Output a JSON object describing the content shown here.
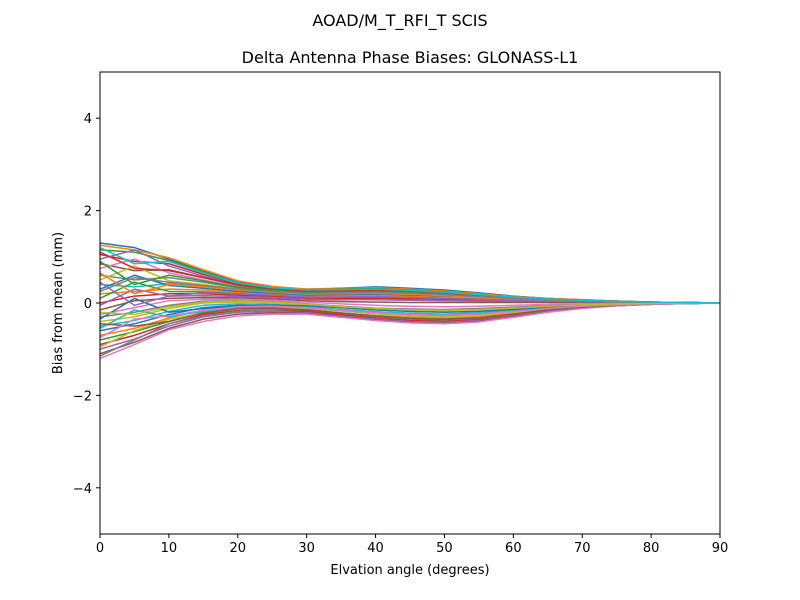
{
  "chart_data": {
    "type": "line",
    "suptitle": "AOAD/M_T_RFI_T  SCIS",
    "title": "Delta Antenna Phase Biases: GLONASS-L1",
    "xlabel": "Elvation angle (degrees)",
    "ylabel": "Bias from mean (mm)",
    "xlim": [
      0,
      90
    ],
    "ylim": [
      -5,
      5
    ],
    "xticks": [
      0,
      10,
      20,
      30,
      40,
      50,
      60,
      70,
      80,
      90
    ],
    "yticks": [
      -4,
      -2,
      0,
      2,
      4
    ],
    "ytick_labels": [
      "−4",
      "−2",
      "0",
      "2",
      "4"
    ],
    "grid": false,
    "legend": "none",
    "x": [
      0,
      5,
      10,
      15,
      20,
      25,
      30,
      35,
      40,
      45,
      50,
      55,
      60,
      65,
      70,
      75,
      80,
      85,
      90
    ],
    "palette": [
      "#1f77b4",
      "#ff7f0e",
      "#2ca02c",
      "#d62728",
      "#9467bd",
      "#8c564b",
      "#e377c2",
      "#7f7f7f",
      "#bcbd22",
      "#17becf"
    ],
    "series": [
      {
        "values": [
          1.3,
          1.2,
          0.95,
          0.7,
          0.45,
          0.35,
          0.3,
          0.32,
          0.35,
          0.32,
          0.28,
          0.22,
          0.15,
          0.1,
          0.07,
          0.04,
          0.02,
          0.01,
          0.0
        ]
      },
      {
        "values": [
          1.25,
          1.15,
          0.98,
          0.72,
          0.48,
          0.36,
          0.3,
          0.31,
          0.33,
          0.3,
          0.26,
          0.2,
          0.14,
          0.1,
          0.07,
          0.04,
          0.02,
          0.01,
          0.0
        ]
      },
      {
        "values": [
          1.15,
          1.1,
          0.92,
          0.68,
          0.44,
          0.33,
          0.28,
          0.3,
          0.31,
          0.28,
          0.24,
          0.18,
          0.13,
          0.09,
          0.06,
          0.04,
          0.02,
          0.01,
          0.0
        ]
      },
      {
        "values": [
          1.05,
          0.9,
          0.85,
          0.62,
          0.42,
          0.32,
          0.27,
          0.28,
          0.29,
          0.26,
          0.22,
          0.17,
          0.12,
          0.08,
          0.06,
          0.03,
          0.02,
          0.01,
          0.0
        ]
      },
      {
        "values": [
          0.95,
          1.15,
          0.8,
          0.58,
          0.4,
          0.3,
          0.26,
          0.27,
          0.28,
          0.25,
          0.21,
          0.16,
          0.12,
          0.08,
          0.05,
          0.03,
          0.02,
          0.01,
          0.0
        ]
      },
      {
        "values": [
          0.85,
          0.7,
          0.72,
          0.55,
          0.38,
          0.29,
          0.25,
          0.26,
          0.27,
          0.24,
          0.2,
          0.15,
          0.11,
          0.08,
          0.05,
          0.03,
          0.02,
          0.01,
          0.0
        ]
      },
      {
        "values": [
          0.75,
          0.95,
          0.65,
          0.5,
          0.35,
          0.27,
          0.23,
          0.24,
          0.25,
          0.22,
          0.19,
          0.14,
          0.1,
          0.07,
          0.05,
          0.03,
          0.01,
          0.01,
          0.0
        ]
      },
      {
        "values": [
          0.6,
          0.5,
          0.55,
          0.45,
          0.33,
          0.25,
          0.22,
          0.23,
          0.24,
          0.21,
          0.18,
          0.14,
          0.1,
          0.07,
          0.04,
          0.03,
          0.01,
          0.0,
          0.0
        ]
      },
      {
        "values": [
          0.5,
          0.8,
          0.48,
          0.4,
          0.3,
          0.24,
          0.2,
          0.21,
          0.22,
          0.2,
          0.17,
          0.13,
          0.09,
          0.06,
          0.04,
          0.02,
          0.01,
          0.0,
          0.0
        ]
      },
      {
        "values": [
          0.4,
          0.35,
          0.42,
          0.36,
          0.28,
          0.22,
          0.18,
          0.19,
          0.2,
          0.18,
          0.15,
          0.12,
          0.08,
          0.06,
          0.04,
          0.02,
          0.01,
          0.0,
          0.0
        ]
      },
      {
        "values": [
          0.3,
          0.6,
          0.38,
          0.32,
          0.25,
          0.2,
          0.16,
          0.17,
          0.18,
          0.16,
          0.14,
          0.11,
          0.08,
          0.05,
          0.03,
          0.02,
          0.01,
          0.0,
          0.0
        ]
      },
      {
        "values": [
          0.2,
          0.25,
          0.3,
          0.28,
          0.22,
          0.18,
          0.14,
          0.15,
          0.16,
          0.14,
          0.12,
          0.1,
          0.07,
          0.05,
          0.03,
          0.02,
          0.01,
          0.0,
          0.0
        ]
      },
      {
        "values": [
          0.1,
          0.45,
          0.25,
          0.24,
          0.2,
          0.16,
          0.12,
          0.12,
          0.13,
          0.12,
          0.1,
          0.08,
          0.06,
          0.04,
          0.03,
          0.02,
          0.01,
          0.0,
          0.0
        ]
      },
      {
        "values": [
          0.0,
          0.15,
          0.2,
          0.2,
          0.17,
          0.14,
          0.1,
          0.1,
          0.1,
          0.09,
          0.08,
          0.06,
          0.05,
          0.03,
          0.02,
          0.01,
          0.01,
          0.0,
          0.0
        ]
      },
      {
        "values": [
          -0.05,
          0.3,
          0.15,
          0.16,
          0.14,
          0.12,
          0.08,
          0.07,
          0.07,
          0.06,
          0.05,
          0.04,
          0.03,
          0.02,
          0.02,
          0.01,
          0.0,
          0.0,
          0.0
        ]
      },
      {
        "values": [
          -0.15,
          0.05,
          0.1,
          0.12,
          0.11,
          0.09,
          0.05,
          0.03,
          0.02,
          0.01,
          0.01,
          0.01,
          0.01,
          0.01,
          0.01,
          0.0,
          0.0,
          0.0,
          0.0
        ]
      },
      {
        "values": [
          -0.25,
          -0.1,
          0.05,
          0.08,
          0.08,
          0.06,
          0.02,
          -0.02,
          -0.05,
          -0.07,
          -0.08,
          -0.07,
          -0.05,
          -0.03,
          -0.02,
          -0.01,
          0.0,
          0.0,
          0.0
        ]
      },
      {
        "values": [
          -0.3,
          -0.2,
          -0.05,
          0.04,
          0.05,
          0.03,
          -0.02,
          -0.07,
          -0.11,
          -0.13,
          -0.14,
          -0.12,
          -0.09,
          -0.06,
          -0.04,
          -0.02,
          -0.01,
          0.0,
          0.0
        ]
      },
      {
        "values": [
          -0.4,
          -0.3,
          -0.12,
          0.0,
          0.02,
          0.0,
          -0.05,
          -0.1,
          -0.15,
          -0.18,
          -0.19,
          -0.17,
          -0.13,
          -0.08,
          -0.05,
          -0.03,
          -0.01,
          0.0,
          0.0
        ]
      },
      {
        "values": [
          -0.5,
          -0.38,
          -0.18,
          -0.05,
          -0.02,
          -0.03,
          -0.08,
          -0.14,
          -0.19,
          -0.22,
          -0.24,
          -0.21,
          -0.16,
          -0.1,
          -0.06,
          -0.03,
          -0.01,
          0.0,
          0.0
        ]
      },
      {
        "values": [
          -0.6,
          -0.45,
          -0.25,
          -0.1,
          -0.05,
          -0.06,
          -0.11,
          -0.17,
          -0.23,
          -0.27,
          -0.29,
          -0.26,
          -0.19,
          -0.12,
          -0.07,
          -0.04,
          -0.02,
          -0.01,
          0.0
        ]
      },
      {
        "values": [
          -0.7,
          -0.55,
          -0.32,
          -0.15,
          -0.09,
          -0.09,
          -0.14,
          -0.21,
          -0.27,
          -0.31,
          -0.33,
          -0.3,
          -0.22,
          -0.14,
          -0.08,
          -0.04,
          -0.02,
          -0.01,
          0.0
        ]
      },
      {
        "values": [
          -0.8,
          -0.62,
          -0.4,
          -0.2,
          -0.12,
          -0.12,
          -0.17,
          -0.24,
          -0.3,
          -0.35,
          -0.37,
          -0.33,
          -0.25,
          -0.16,
          -0.09,
          -0.05,
          -0.02,
          -0.01,
          0.0
        ]
      },
      {
        "values": [
          -0.9,
          -0.7,
          -0.45,
          -0.25,
          -0.16,
          -0.15,
          -0.19,
          -0.26,
          -0.33,
          -0.38,
          -0.4,
          -0.36,
          -0.27,
          -0.17,
          -0.1,
          -0.05,
          -0.02,
          -0.01,
          0.0
        ]
      },
      {
        "values": [
          -1.0,
          -0.78,
          -0.5,
          -0.3,
          -0.2,
          -0.18,
          -0.21,
          -0.28,
          -0.35,
          -0.4,
          -0.42,
          -0.38,
          -0.29,
          -0.18,
          -0.11,
          -0.06,
          -0.03,
          -0.01,
          0.0
        ]
      },
      {
        "values": [
          -1.1,
          -0.85,
          -0.55,
          -0.35,
          -0.24,
          -0.21,
          -0.23,
          -0.3,
          -0.37,
          -0.42,
          -0.44,
          -0.4,
          -0.3,
          -0.19,
          -0.11,
          -0.06,
          -0.03,
          -0.01,
          0.0
        ]
      },
      {
        "values": [
          -1.2,
          -0.9,
          -0.58,
          -0.4,
          -0.28,
          -0.24,
          -0.24,
          -0.31,
          -0.38,
          -0.43,
          -0.45,
          -0.41,
          -0.31,
          -0.2,
          -0.12,
          -0.06,
          -0.03,
          -0.01,
          0.0
        ]
      },
      {
        "values": [
          -1.15,
          -0.8,
          -0.45,
          -0.28,
          -0.18,
          -0.14,
          -0.15,
          -0.22,
          -0.29,
          -0.34,
          -0.36,
          -0.33,
          -0.25,
          -0.16,
          -0.09,
          -0.05,
          -0.02,
          -0.01,
          0.0
        ]
      },
      {
        "values": [
          -0.95,
          -0.6,
          -0.35,
          -0.22,
          -0.13,
          -0.1,
          -0.11,
          -0.17,
          -0.23,
          -0.28,
          -0.3,
          -0.27,
          -0.2,
          -0.13,
          -0.08,
          -0.04,
          -0.02,
          -0.01,
          0.0
        ]
      },
      {
        "values": [
          -0.55,
          -0.15,
          -0.3,
          -0.18,
          -0.1,
          -0.08,
          -0.09,
          -0.14,
          -0.19,
          -0.23,
          -0.25,
          -0.22,
          -0.17,
          -0.11,
          -0.07,
          -0.04,
          -0.02,
          -0.01,
          0.0
        ]
      },
      {
        "values": [
          -0.35,
          0.1,
          -0.2,
          -0.12,
          -0.06,
          -0.05,
          -0.06,
          -0.1,
          -0.15,
          -0.18,
          -0.2,
          -0.18,
          -0.14,
          -0.09,
          -0.05,
          -0.03,
          -0.01,
          0.0,
          0.0
        ]
      },
      {
        "values": [
          0.65,
          0.2,
          0.4,
          0.35,
          0.28,
          0.24,
          0.2,
          0.2,
          0.21,
          0.19,
          0.16,
          0.12,
          0.09,
          0.06,
          0.04,
          0.02,
          0.01,
          0.0,
          0.0
        ]
      },
      {
        "values": [
          0.9,
          0.4,
          0.6,
          0.48,
          0.34,
          0.28,
          0.24,
          0.25,
          0.26,
          0.23,
          0.2,
          0.15,
          0.11,
          0.07,
          0.05,
          0.03,
          0.01,
          0.0,
          0.0
        ]
      },
      {
        "values": [
          1.1,
          0.75,
          0.7,
          0.55,
          0.4,
          0.31,
          0.26,
          0.27,
          0.28,
          0.26,
          0.22,
          0.17,
          0.12,
          0.08,
          0.05,
          0.03,
          0.02,
          0.01,
          0.0
        ]
      },
      {
        "values": [
          0.45,
          -0.05,
          0.15,
          0.22,
          0.2,
          0.17,
          0.13,
          0.13,
          0.14,
          0.12,
          0.1,
          0.08,
          0.06,
          0.04,
          0.03,
          0.02,
          0.01,
          0.0,
          0.0
        ]
      },
      {
        "values": [
          -0.45,
          -0.5,
          -0.4,
          -0.22,
          -0.12,
          -0.11,
          -0.15,
          -0.22,
          -0.28,
          -0.33,
          -0.35,
          -0.32,
          -0.24,
          -0.15,
          -0.09,
          -0.05,
          -0.02,
          -0.01,
          0.0
        ]
      },
      {
        "values": [
          -0.75,
          -0.35,
          -0.28,
          -0.16,
          -0.08,
          -0.07,
          -0.1,
          -0.16,
          -0.21,
          -0.25,
          -0.27,
          -0.24,
          -0.18,
          -0.12,
          -0.07,
          -0.04,
          -0.02,
          -0.01,
          0.0
        ]
      },
      {
        "values": [
          0.25,
          0.55,
          0.45,
          0.38,
          0.3,
          0.25,
          0.21,
          0.22,
          0.23,
          0.21,
          0.18,
          0.14,
          0.1,
          0.07,
          0.04,
          0.02,
          0.01,
          0.0,
          0.0
        ]
      },
      {
        "values": [
          -0.2,
          -0.25,
          -0.08,
          0.02,
          0.04,
          0.02,
          -0.03,
          -0.08,
          -0.12,
          -0.15,
          -0.16,
          -0.14,
          -0.11,
          -0.07,
          -0.04,
          -0.02,
          -0.01,
          0.0,
          0.0
        ]
      },
      {
        "values": [
          1.2,
          0.85,
          0.9,
          0.65,
          0.43,
          0.33,
          0.28,
          0.29,
          0.3,
          0.27,
          0.23,
          0.18,
          0.13,
          0.09,
          0.06,
          0.03,
          0.02,
          0.01,
          0.0
        ]
      }
    ]
  }
}
